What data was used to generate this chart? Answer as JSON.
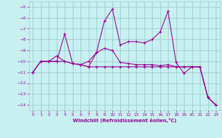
{
  "xlabel": "Windchill (Refroidissement éolien,°C)",
  "bg_color": "#c8f0f0",
  "line_color": "#990099",
  "grid_color": "#99cccc",
  "x_values": [
    0,
    1,
    2,
    3,
    4,
    5,
    6,
    7,
    8,
    9,
    10,
    11,
    12,
    13,
    14,
    15,
    16,
    17,
    18,
    19,
    20,
    21,
    22,
    23
  ],
  "series": [
    [
      -11.0,
      -10.0,
      -10.0,
      -10.0,
      -7.5,
      -10.2,
      -10.3,
      -10.5,
      -9.2,
      -6.3,
      -5.2,
      -8.5,
      -8.2,
      -8.2,
      -8.3,
      -8.0,
      -7.3,
      -5.4,
      -10.1,
      -11.1,
      -10.5,
      -10.5,
      -13.3,
      -14.0
    ],
    [
      -11.0,
      -10.0,
      -10.0,
      -9.5,
      -10.0,
      -10.2,
      -10.3,
      -10.0,
      -9.2,
      -8.8,
      -9.0,
      -10.1,
      -10.2,
      -10.3,
      -10.3,
      -10.3,
      -10.4,
      -10.3,
      -10.5,
      -10.5,
      -10.5,
      -10.5,
      -13.3,
      -14.0
    ],
    [
      -11.0,
      -10.0,
      -10.0,
      -10.0,
      -10.0,
      -10.2,
      -10.3,
      -10.5,
      -10.5,
      -10.5,
      -10.5,
      -10.5,
      -10.5,
      -10.5,
      -10.5,
      -10.5,
      -10.5,
      -10.5,
      -10.5,
      -10.5,
      -10.5,
      -10.5,
      -13.3,
      -14.0
    ]
  ],
  "ylim": [
    -14.5,
    -4.5
  ],
  "xlim": [
    -0.5,
    23.5
  ],
  "yticks": [
    -14,
    -13,
    -12,
    -11,
    -10,
    -9,
    -8,
    -7,
    -6,
    -5
  ],
  "xticks": [
    0,
    1,
    2,
    3,
    4,
    5,
    6,
    7,
    8,
    9,
    10,
    11,
    12,
    13,
    14,
    15,
    16,
    17,
    18,
    19,
    20,
    21,
    22,
    23
  ],
  "tick_fontsize": 4.5,
  "xlabel_fontsize": 5.0
}
